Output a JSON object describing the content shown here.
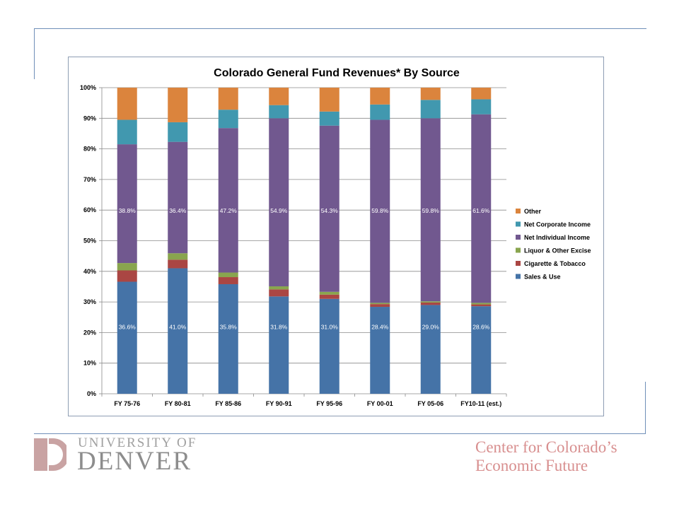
{
  "footer": {
    "university_line1": "UNIVERSITY OF",
    "university_line2": "DENVER",
    "center_line1": "Center for Colorado’s",
    "center_line2": "Economic Future"
  },
  "colors": {
    "sales_use": "#4573a7",
    "cigarette_tobacco": "#aa4643",
    "liquor_excise": "#89a54e",
    "net_individual": "#71588f",
    "net_corporate": "#4198af",
    "other": "#db843d",
    "frame_line": "#6f8fb8",
    "du_logo": "#c9a3a3",
    "center_logo": "#d88f8f"
  },
  "chart_data": {
    "type": "bar",
    "stacked": true,
    "title": "Colorado General Fund Revenues* By Source",
    "categories": [
      "FY 75-76",
      "FY 80-81",
      "FY 85-86",
      "FY 90-91",
      "FY 95-96",
      "FY 00-01",
      "FY 05-06",
      "FY10-11 (est.)"
    ],
    "ylim": [
      0,
      100
    ],
    "yticks": [
      "0%",
      "10%",
      "20%",
      "30%",
      "40%",
      "50%",
      "60%",
      "70%",
      "80%",
      "90%",
      "100%"
    ],
    "grid": true,
    "legend_position": "right",
    "series": [
      {
        "name": "Sales & Use",
        "color": "#4573a7",
        "values": [
          36.6,
          41.0,
          35.8,
          31.8,
          31.0,
          28.4,
          29.0,
          28.6
        ],
        "labels": [
          "36.6%",
          "41.0%",
          "35.8%",
          "31.8%",
          "31.0%",
          "28.4%",
          "29.0%",
          "28.6%"
        ]
      },
      {
        "name": "Cigarette & Tobacco",
        "color": "#aa4643",
        "values": [
          3.7,
          2.8,
          2.3,
          2.3,
          1.4,
          0.9,
          0.8,
          0.6
        ]
      },
      {
        "name": "Liquor & Other Excise",
        "color": "#89a54e",
        "values": [
          2.4,
          2.1,
          1.5,
          1.0,
          0.9,
          0.4,
          0.4,
          0.5
        ]
      },
      {
        "name": "Net Individual Income",
        "color": "#71588f",
        "values": [
          38.8,
          36.4,
          47.2,
          54.9,
          54.3,
          59.8,
          59.8,
          61.6
        ],
        "labels": [
          "38.8%",
          "36.4%",
          "47.2%",
          "54.9%",
          "54.3%",
          "59.8%",
          "59.8%",
          "61.6%"
        ]
      },
      {
        "name": "Net Corporate Income",
        "color": "#4198af",
        "values": [
          8.0,
          6.4,
          6.0,
          4.3,
          4.6,
          5.0,
          6.0,
          4.9
        ]
      },
      {
        "name": "Other",
        "color": "#db843d",
        "values": [
          10.5,
          11.3,
          7.2,
          5.7,
          7.8,
          5.5,
          4.0,
          3.8
        ]
      }
    ],
    "legend_order": [
      "Other",
      "Net Corporate Income",
      "Net Individual Income",
      "Liquor & Other Excise",
      "Cigarette & Tobacco",
      "Sales & Use"
    ]
  }
}
